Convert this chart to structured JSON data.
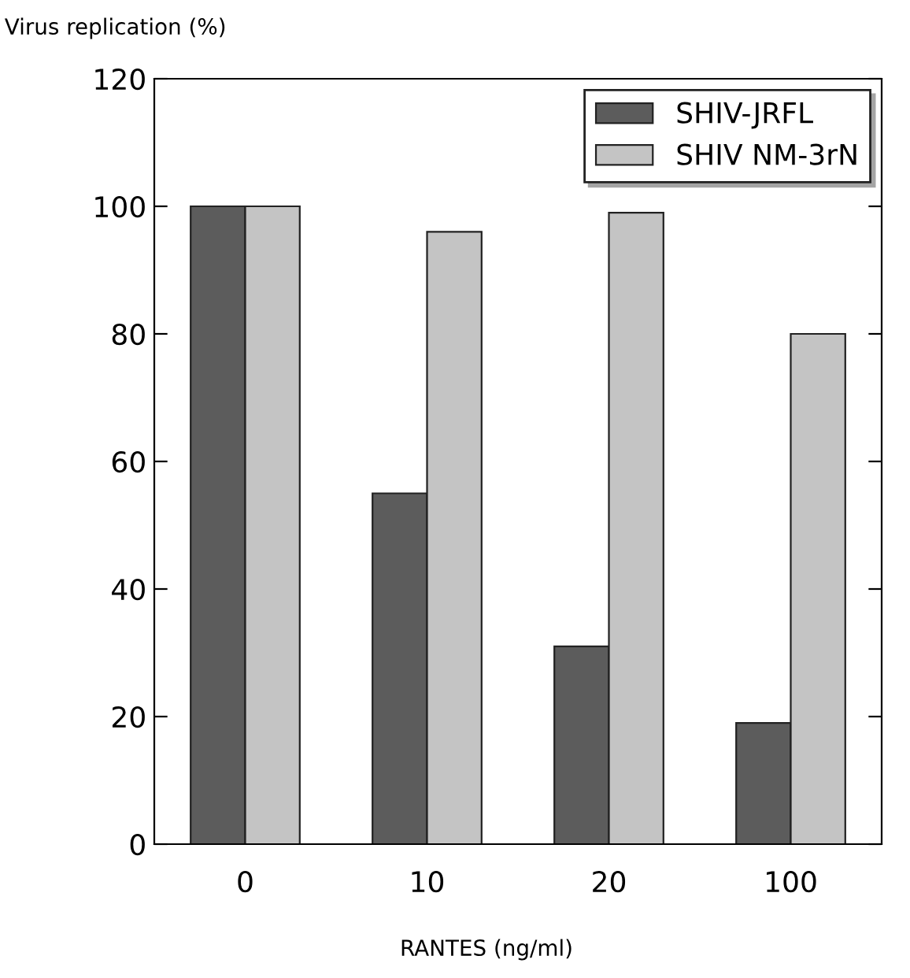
{
  "chart_data": {
    "type": "bar",
    "ylabel": "Virus replication (%)",
    "xlabel": "RANTES (ng/ml)",
    "categories": [
      "0",
      "10",
      "20",
      "100"
    ],
    "series": [
      {
        "name": "SHIV-JRFL",
        "color": "#5c5c5c",
        "values": [
          100,
          55,
          31,
          19
        ]
      },
      {
        "name": "SHIV NM-3rN",
        "color": "#c4c4c4",
        "values": [
          100,
          96,
          99,
          80
        ]
      }
    ],
    "ylim": [
      0,
      120
    ],
    "yticks": [
      0,
      20,
      40,
      60,
      80,
      100,
      120
    ],
    "grid": false,
    "legend": "top right"
  }
}
